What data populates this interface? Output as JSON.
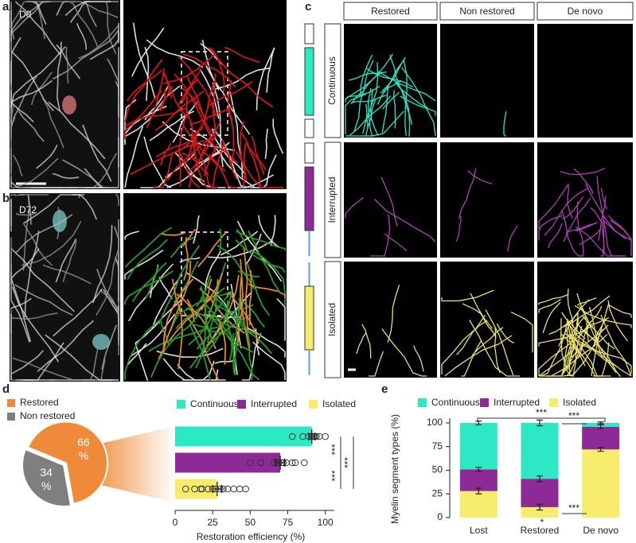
{
  "panels": {
    "a": {
      "letter": "a",
      "day": "D0"
    },
    "b": {
      "letter": "b",
      "day": "D72"
    },
    "c": {
      "letter": "c",
      "columns": [
        "Restored",
        "Non restored",
        "De novo"
      ],
      "rows": [
        "Continuous",
        "Interrupted",
        "Isolated"
      ]
    },
    "d": {
      "letter": "d"
    },
    "e": {
      "letter": "e"
    }
  },
  "chart_data": [
    {
      "type": "pie",
      "categories": [
        "Restored",
        "Non restored"
      ],
      "values": [
        66,
        34
      ],
      "value_labels": [
        "66 %",
        "34 %"
      ],
      "colors": [
        "#ef8a3a",
        "#7f7f7f"
      ]
    },
    {
      "type": "hbar",
      "xlabel": "Restoration efficiency (%)",
      "categories": [
        "Continuous",
        "Interrupted",
        "Isolated"
      ],
      "values": [
        91,
        70,
        28
      ],
      "errors": [
        2,
        3,
        3
      ],
      "points": [
        [
          78,
          85,
          89,
          91,
          92,
          93,
          93,
          94,
          96,
          100
        ],
        [
          50,
          57,
          66,
          68,
          69,
          71,
          72,
          74,
          78,
          80,
          86
        ],
        [
          7,
          13,
          17,
          18,
          22,
          25,
          27,
          30,
          32,
          35,
          39,
          43,
          47
        ]
      ],
      "colors": [
        "#2de8c5",
        "#8e2a96",
        "#f8ec6c"
      ],
      "xlim": [
        0,
        106
      ],
      "xticks": [
        0,
        25,
        50,
        75,
        100
      ],
      "annotations": [
        "***",
        "***",
        "***"
      ]
    },
    {
      "type": "stacked_bar",
      "ylabel": "Myelin segment types (%)",
      "categories": [
        "Lost",
        "Restored",
        "De novo"
      ],
      "series": [
        {
          "name": "Isolated",
          "color": "#f8ec6c",
          "values": [
            28,
            11,
            72
          ],
          "errors": [
            3,
            3,
            2
          ]
        },
        {
          "name": "Interrupted",
          "color": "#8e2a96",
          "values": [
            23,
            30,
            24
          ],
          "errors": [
            2,
            3,
            2
          ]
        },
        {
          "name": "Continuous",
          "color": "#2de8c5",
          "values": [
            49,
            59,
            4
          ],
          "errors": [
            2,
            3,
            1
          ]
        }
      ],
      "ylim": [
        0,
        105
      ],
      "yticks": [
        0,
        25,
        50,
        75,
        100
      ],
      "annotations": [
        "***",
        "***",
        "***",
        "*"
      ]
    }
  ]
}
